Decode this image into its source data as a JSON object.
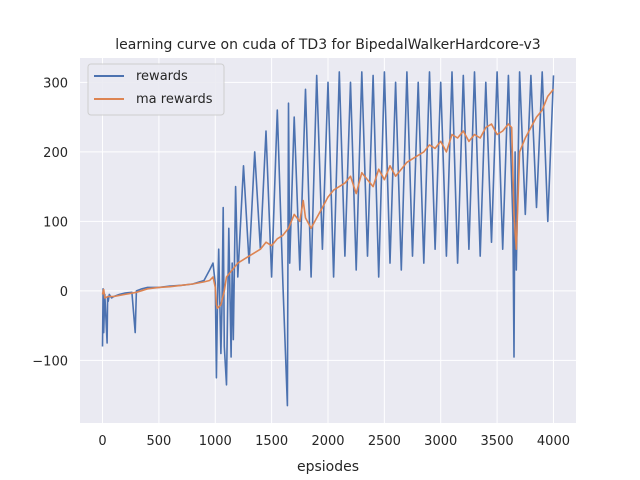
{
  "chart_data": {
    "type": "line",
    "title": "learning curve on cuda of TD3 for BipedalWalkerHardcore-v3",
    "xlabel": "epsiodes",
    "ylabel": "",
    "xlim": [
      -200,
      4200
    ],
    "ylim": [
      -190,
      335
    ],
    "xticks": [
      0,
      500,
      1000,
      1500,
      2000,
      2500,
      3000,
      3500,
      4000
    ],
    "yticks": [
      -100,
      0,
      100,
      200,
      300
    ],
    "xtick_labels": [
      "0",
      "500",
      "1000",
      "1500",
      "2000",
      "2500",
      "3000",
      "3500",
      "4000"
    ],
    "ytick_labels": [
      "−100",
      "0",
      "100",
      "200",
      "300"
    ],
    "grid": true,
    "background": "#eaeaf2",
    "legend_position": "top-left",
    "series": [
      {
        "name": "rewards",
        "color": "#4c72b0",
        "x": [
          0,
          5,
          10,
          20,
          40,
          45,
          50,
          60,
          80,
          100,
          150,
          200,
          260,
          290,
          300,
          350,
          400,
          500,
          600,
          700,
          800,
          900,
          950,
          980,
          1000,
          1010,
          1020,
          1030,
          1050,
          1060,
          1070,
          1080,
          1100,
          1120,
          1140,
          1150,
          1160,
          1180,
          1200,
          1250,
          1300,
          1350,
          1400,
          1450,
          1500,
          1550,
          1600,
          1640,
          1650,
          1660,
          1700,
          1750,
          1800,
          1850,
          1900,
          1950,
          2000,
          2050,
          2100,
          2150,
          2200,
          2250,
          2300,
          2350,
          2400,
          2450,
          2500,
          2550,
          2600,
          2650,
          2700,
          2750,
          2800,
          2850,
          2900,
          2950,
          3000,
          3050,
          3100,
          3150,
          3200,
          3250,
          3300,
          3350,
          3400,
          3450,
          3500,
          3550,
          3600,
          3640,
          3650,
          3660,
          3670,
          3700,
          3750,
          3800,
          3850,
          3900,
          3950,
          4000
        ],
        "y": [
          -80,
          3,
          -60,
          -5,
          -75,
          -8,
          -15,
          -5,
          -10,
          -8,
          -5,
          -3,
          -2,
          -60,
          0,
          3,
          5,
          5,
          7,
          8,
          10,
          15,
          30,
          40,
          10,
          -125,
          -15,
          60,
          -90,
          -20,
          120,
          -80,
          -135,
          90,
          -95,
          40,
          -70,
          150,
          20,
          180,
          40,
          200,
          60,
          230,
          20,
          260,
          10,
          -165,
          270,
          40,
          250,
          30,
          290,
          20,
          310,
          60,
          300,
          20,
          315,
          50,
          300,
          30,
          315,
          50,
          310,
          20,
          315,
          40,
          300,
          30,
          315,
          50,
          300,
          40,
          315,
          60,
          300,
          50,
          315,
          40,
          310,
          60,
          315,
          50,
          300,
          70,
          315,
          60,
          310,
          100,
          -95,
          200,
          30,
          315,
          110,
          310,
          120,
          315,
          100,
          310
        ]
      },
      {
        "name": "ma rewards",
        "color": "#dd8452",
        "x": [
          0,
          10,
          20,
          50,
          100,
          200,
          300,
          400,
          500,
          600,
          700,
          800,
          900,
          950,
          980,
          1000,
          1010,
          1020,
          1050,
          1080,
          1100,
          1150,
          1200,
          1250,
          1300,
          1350,
          1400,
          1450,
          1500,
          1550,
          1600,
          1650,
          1700,
          1750,
          1780,
          1800,
          1850,
          1900,
          1950,
          2000,
          2050,
          2100,
          2150,
          2200,
          2250,
          2300,
          2350,
          2400,
          2450,
          2500,
          2550,
          2600,
          2650,
          2700,
          2750,
          2800,
          2850,
          2900,
          2950,
          3000,
          3050,
          3100,
          3150,
          3200,
          3250,
          3300,
          3350,
          3400,
          3450,
          3500,
          3550,
          3600,
          3630,
          3650,
          3670,
          3700,
          3750,
          3800,
          3850,
          3900,
          3950,
          4000
        ],
        "y": [
          -5,
          2,
          -10,
          -8,
          -8,
          -5,
          -2,
          3,
          5,
          6,
          8,
          10,
          13,
          15,
          20,
          5,
          -20,
          -25,
          -20,
          0,
          20,
          30,
          40,
          45,
          50,
          55,
          60,
          70,
          65,
          75,
          80,
          90,
          110,
          100,
          130,
          105,
          90,
          105,
          120,
          135,
          145,
          150,
          155,
          165,
          140,
          170,
          160,
          150,
          175,
          160,
          180,
          165,
          175,
          185,
          190,
          195,
          200,
          210,
          205,
          215,
          200,
          225,
          220,
          230,
          215,
          225,
          220,
          235,
          240,
          225,
          230,
          240,
          235,
          110,
          60,
          200,
          220,
          235,
          250,
          260,
          280,
          290
        ]
      }
    ]
  }
}
